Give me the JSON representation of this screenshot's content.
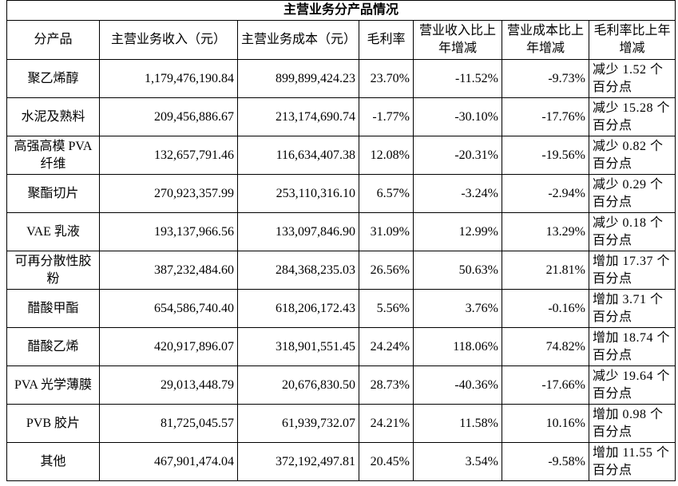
{
  "table": {
    "title": "主营业务分产品情况",
    "header": [
      "分产品",
      "主营业务收入（元）",
      "主营业务成本（元）",
      "毛利率",
      "营业收入比上年增减",
      "营业成本比上年增减",
      "毛利率比上年增减"
    ],
    "rows": [
      [
        "聚乙烯醇",
        "1,179,476,190.84",
        "899,899,424.23",
        "23.70%",
        "-11.52%",
        "-9.73%",
        "减少 1.52 个百分点"
      ],
      [
        "水泥及熟料",
        "209,456,886.67",
        "213,174,690.74",
        "-1.77%",
        "-30.10%",
        "-17.76%",
        "减少 15.28 个百分点"
      ],
      [
        "高强高模 PVA 纤维",
        "132,657,791.46",
        "116,634,407.38",
        "12.08%",
        "-20.31%",
        "-19.56%",
        "减少 0.82 个百分点"
      ],
      [
        "聚酯切片",
        "270,923,357.99",
        "253,110,316.10",
        "6.57%",
        "-3.24%",
        "-2.94%",
        "减少 0.29 个百分点"
      ],
      [
        "VAE 乳液",
        "193,137,966.56",
        "133,097,846.90",
        "31.09%",
        "12.99%",
        "13.29%",
        "减少 0.18 个百分点"
      ],
      [
        "可再分散性胶粉",
        "387,232,484.60",
        "284,368,235.03",
        "26.56%",
        "50.63%",
        "21.81%",
        "增加 17.37 个百分点"
      ],
      [
        "醋酸甲酯",
        "654,586,740.40",
        "618,206,172.43",
        "5.56%",
        "3.76%",
        "-0.16%",
        "增加 3.71 个百分点"
      ],
      [
        "醋酸乙烯",
        "420,917,896.07",
        "318,901,551.45",
        "24.24%",
        "118.06%",
        "74.82%",
        "增加 18.74 个百分点"
      ],
      [
        "PVA 光学薄膜",
        "29,013,448.79",
        "20,676,830.50",
        "28.73%",
        "-40.36%",
        "-17.66%",
        "减少 19.64 个百分点"
      ],
      [
        "PVB 胶片",
        "81,725,045.57",
        "61,939,732.07",
        "24.21%",
        "11.58%",
        "10.16%",
        "增加 0.98 个百分点"
      ],
      [
        "其他",
        "467,901,474.04",
        "372,192,497.81",
        "20.45%",
        "3.54%",
        "-9.58%",
        "增加 11.55 个百分点"
      ]
    ]
  }
}
